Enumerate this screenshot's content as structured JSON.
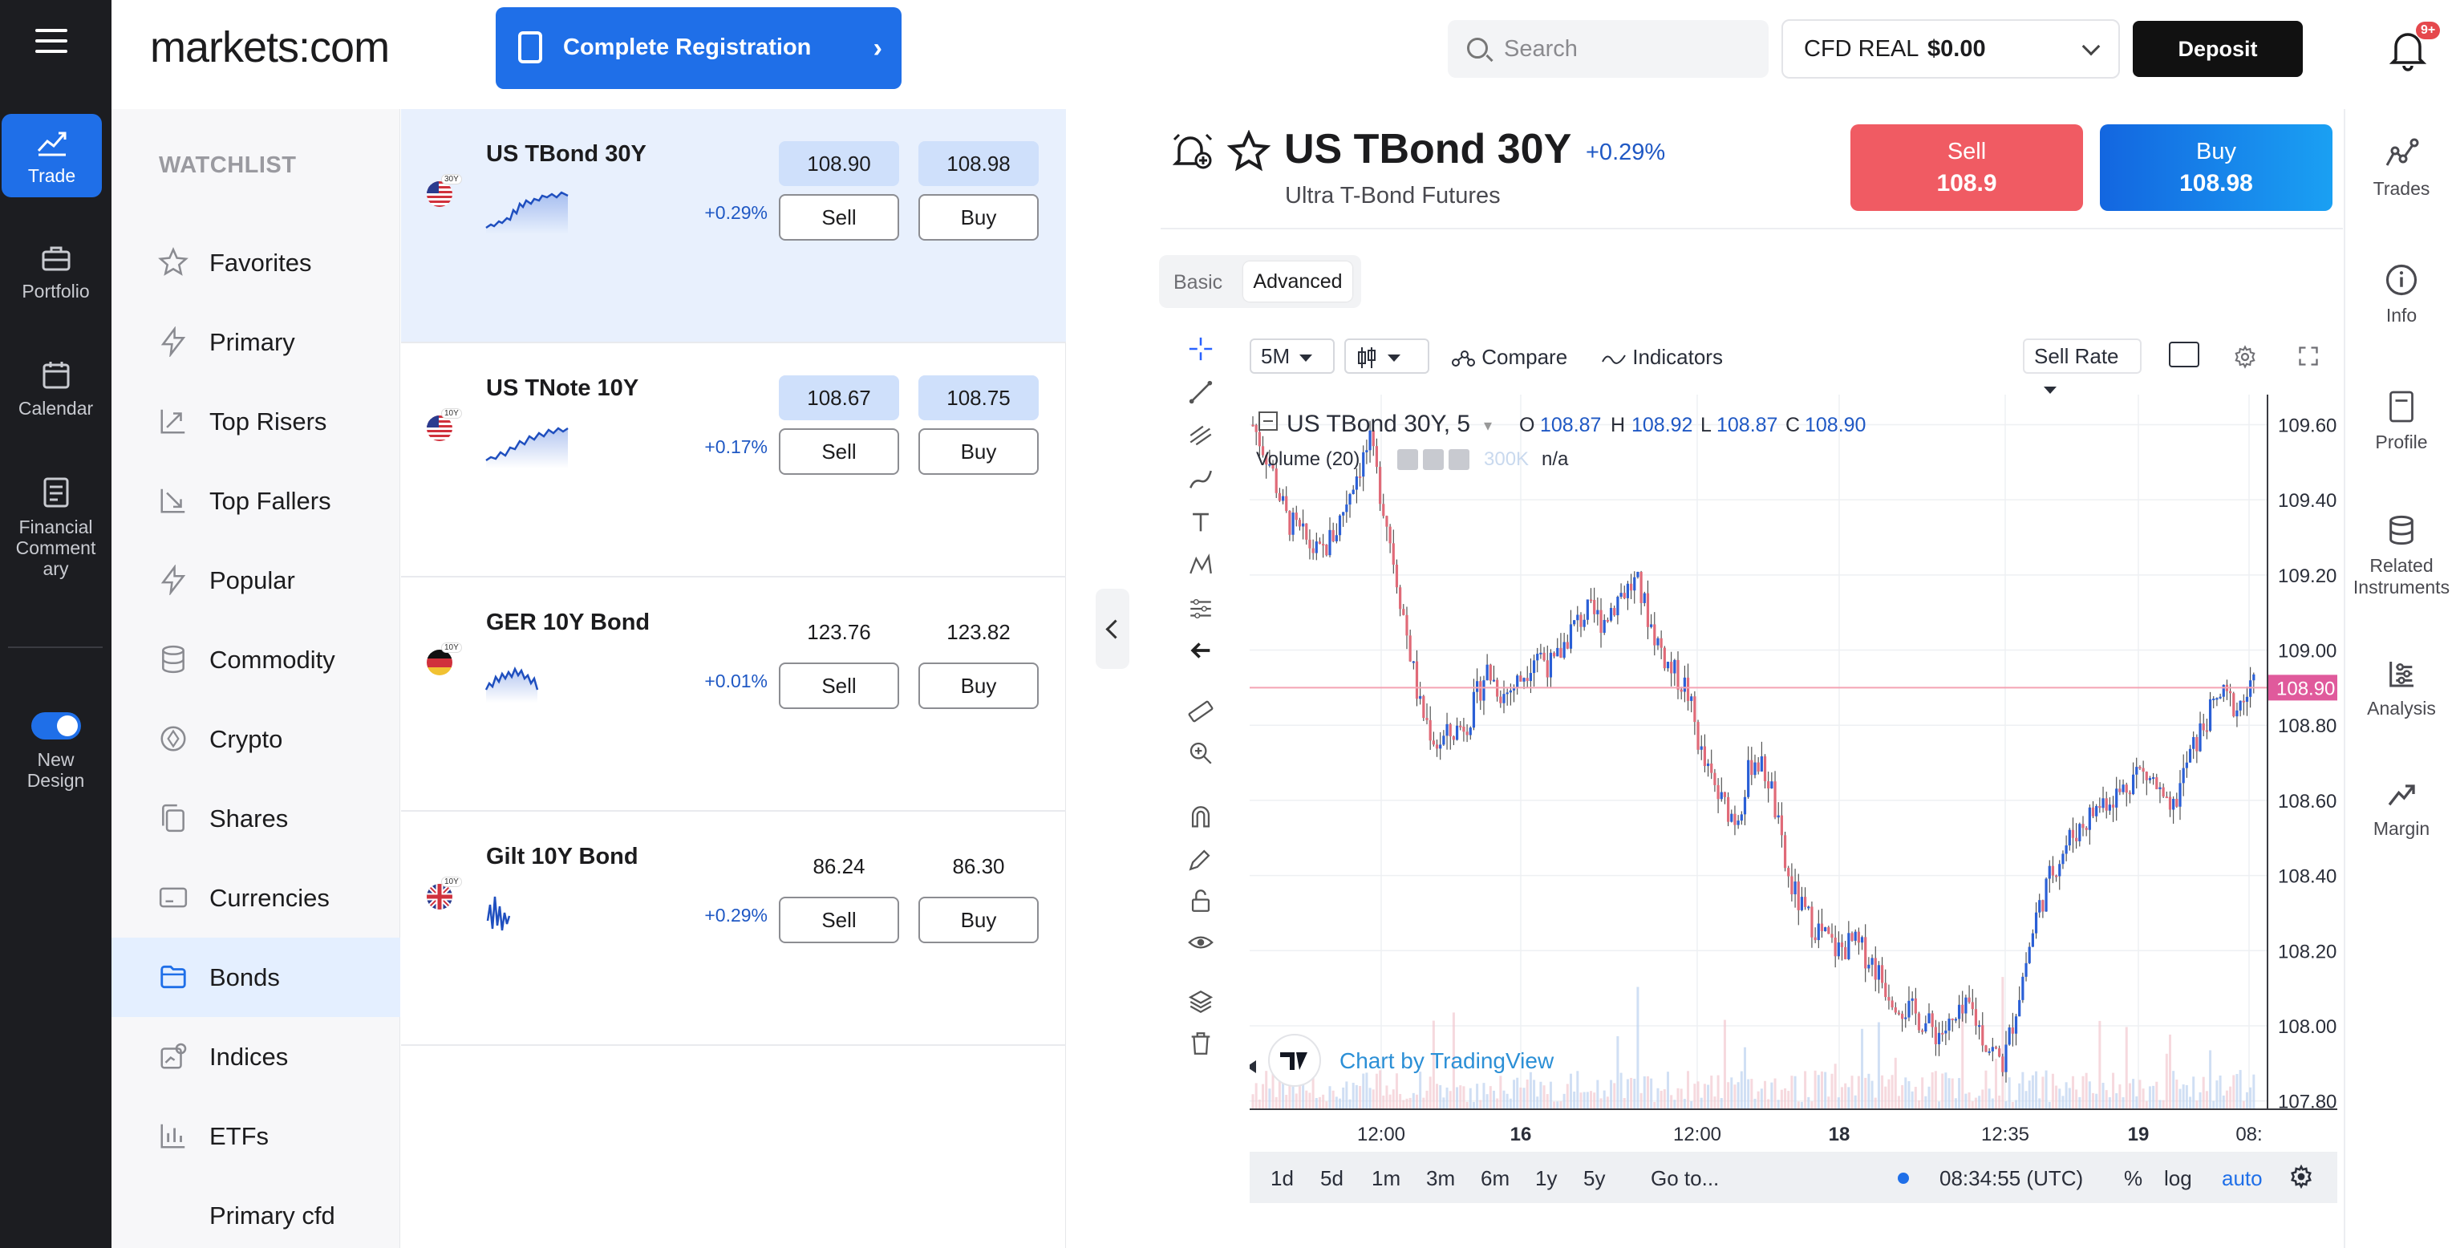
{
  "app": {
    "logo": "markets:com"
  },
  "topbar": {
    "register_label": "Complete Registration",
    "search_placeholder": "Search",
    "account_type": "CFD REAL",
    "account_balance": "$0.00",
    "deposit_label": "Deposit",
    "notif_badge": "9+"
  },
  "rail": {
    "items": [
      {
        "label": "Trade"
      },
      {
        "label": "Portfolio"
      },
      {
        "label": "Calendar"
      },
      {
        "label": "Financial Comment ary"
      }
    ],
    "new_design_label": "New Design"
  },
  "watchlist": {
    "title": "WATCHLIST",
    "items": [
      {
        "label": "Favorites"
      },
      {
        "label": "Primary"
      },
      {
        "label": "Top Risers"
      },
      {
        "label": "Top Fallers"
      },
      {
        "label": "Popular"
      },
      {
        "label": "Commodity"
      },
      {
        "label": "Crypto"
      },
      {
        "label": "Shares"
      },
      {
        "label": "Currencies"
      },
      {
        "label": "Bonds"
      },
      {
        "label": "Indices"
      },
      {
        "label": "ETFs"
      },
      {
        "label": "Primary cfd"
      }
    ],
    "active_index": 9
  },
  "instruments": [
    {
      "name": "US TBond 30Y",
      "tag": "30Y",
      "sell": "108.90",
      "buy": "108.98",
      "change": "+0.29%",
      "sell_label": "Sell",
      "buy_label": "Buy",
      "flag": "us"
    },
    {
      "name": "US TNote 10Y",
      "tag": "10Y",
      "sell": "108.67",
      "buy": "108.75",
      "change": "+0.17%",
      "sell_label": "Sell",
      "buy_label": "Buy",
      "flag": "us"
    },
    {
      "name": "GER 10Y Bond",
      "tag": "10Y",
      "sell": "123.76",
      "buy": "123.82",
      "change": "+0.01%",
      "sell_label": "Sell",
      "buy_label": "Buy",
      "flag": "de"
    },
    {
      "name": "Gilt 10Y Bond",
      "tag": "10Y",
      "sell": "86.24",
      "buy": "86.30",
      "change": "+0.29%",
      "sell_label": "Sell",
      "buy_label": "Buy",
      "flag": "gb"
    }
  ],
  "detail": {
    "title": "US TBond 30Y",
    "change": "+0.29%",
    "subtitle": "Ultra T-Bond Futures",
    "sell_label": "Sell",
    "sell_value": "108.9",
    "buy_label": "Buy",
    "buy_value": "108.98",
    "mode_basic": "Basic",
    "mode_advanced": "Advanced"
  },
  "chart_toolbar": {
    "interval": "5M",
    "compare": "Compare",
    "indicators": "Indicators",
    "rate": "Sell Rate"
  },
  "chart_data": {
    "type": "candlestick",
    "legend_symbol": "US TBond 30Y, 5",
    "ohlc": {
      "O": "108.87",
      "H": "108.92",
      "L": "108.87",
      "C": "108.90"
    },
    "volume_label": "Volume (20)",
    "volume_value": "300K",
    "volume_na": "n/a",
    "y_ticks": [
      "109.60",
      "109.40",
      "109.20",
      "109.00",
      "108.80",
      "108.60",
      "108.40",
      "108.20",
      "108.00",
      "107.80"
    ],
    "ylim": [
      107.78,
      109.68
    ],
    "last_price": "108.90",
    "x_ticks": [
      "12:00",
      "16",
      "12:00",
      "18",
      "12:35",
      "19",
      "08:"
    ],
    "close_path": [
      109.6,
      109.5,
      109.35,
      109.3,
      109.25,
      109.32,
      109.45,
      109.55,
      109.35,
      109.1,
      108.85,
      108.75,
      108.78,
      108.82,
      108.95,
      108.88,
      108.92,
      109.0,
      108.95,
      109.05,
      109.1,
      109.08,
      109.15,
      109.18,
      109.05,
      108.95,
      108.9,
      108.7,
      108.6,
      108.55,
      108.72,
      108.65,
      108.4,
      108.3,
      108.25,
      108.2,
      108.22,
      108.18,
      108.1,
      108.05,
      108.02,
      107.98,
      108.0,
      108.05,
      107.95,
      107.9,
      108.1,
      108.3,
      108.42,
      108.5,
      108.55,
      108.6,
      108.62,
      108.68,
      108.65,
      108.55,
      108.7,
      108.8,
      108.88,
      108.85,
      108.9
    ],
    "attribution": "Chart by TradingView"
  },
  "timebar": {
    "ranges": [
      "1d",
      "5d",
      "1m",
      "3m",
      "6m",
      "1y",
      "5y"
    ],
    "goto": "Go to...",
    "clock": "08:34:55 (UTC)",
    "percent": "%",
    "log": "log",
    "auto": "auto"
  },
  "right_rail": {
    "items": [
      {
        "label": "Trades"
      },
      {
        "label": "Info"
      },
      {
        "label": "Profile"
      },
      {
        "label": "Related Instruments"
      },
      {
        "label": "Analysis"
      },
      {
        "label": "Margin"
      }
    ]
  },
  "colors": {
    "accent": "#1f6fe8",
    "sell": "#f05b63",
    "up": "#2a5fd6",
    "down": "#e06a78"
  }
}
